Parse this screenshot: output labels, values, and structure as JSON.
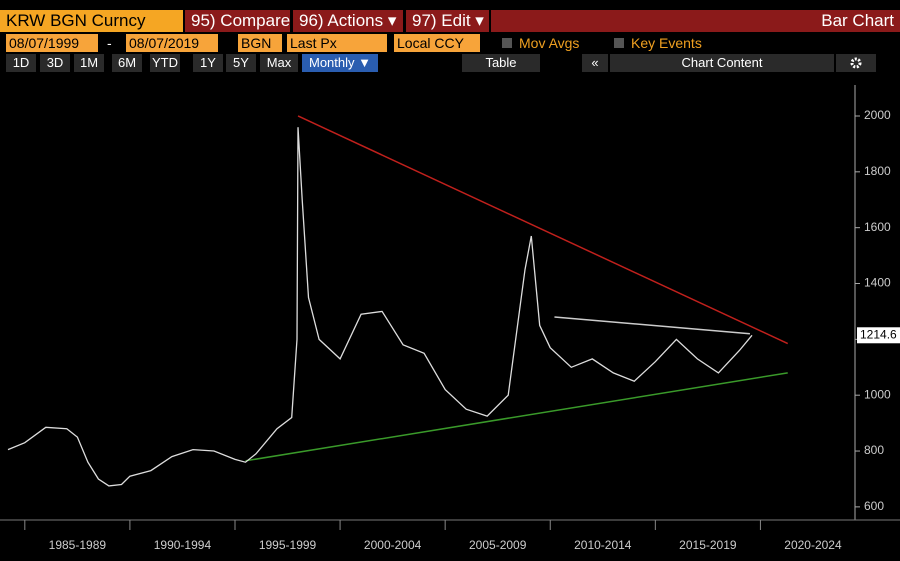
{
  "toolbar": {
    "ticker": "KRW BGN Curncy",
    "compare": "95) Compare",
    "actions": "96) Actions ▾",
    "edit": "97) Edit ▾",
    "chart_kind": "Bar Chart",
    "start_date": "08/07/1999",
    "date_dash": "-",
    "end_date": "08/07/2019",
    "source": "BGN",
    "field": "Last Px",
    "currency": "Local CCY",
    "mov_avgs": "Mov Avgs",
    "key_events": "Key Events",
    "periods": [
      "1D",
      "3D",
      "1M",
      "6M",
      "YTD",
      "1Y",
      "5Y",
      "Max"
    ],
    "frequency": "Monthly ▼",
    "table": "Table",
    "collapse": "«",
    "chart_content": "Chart Content"
  },
  "chart_data": {
    "type": "line",
    "x": [
      1984.2,
      1985,
      1986,
      1987,
      1987.5,
      1988,
      1988.5,
      1989,
      1989.6,
      1990,
      1991,
      1992,
      1993,
      1994,
      1995,
      1995.5,
      1996,
      1997,
      1997.7,
      1997.95,
      1998.0,
      1998.2,
      1998.5,
      1999,
      2000,
      2001,
      2002,
      2003,
      2004,
      2005,
      2006,
      2007,
      2008,
      2008.8,
      2009.1,
      2009.5,
      2010,
      2011,
      2012,
      2013,
      2014,
      2015,
      2016,
      2017,
      2018,
      2019,
      2019.6
    ],
    "series": [
      {
        "name": "KRW BGN Curncy",
        "color": "#dddddd",
        "values": [
          805,
          830,
          885,
          880,
          850,
          760,
          700,
          675,
          680,
          710,
          730,
          780,
          805,
          800,
          770,
          760,
          790,
          880,
          920,
          1200,
          1960,
          1700,
          1350,
          1200,
          1130,
          1290,
          1300,
          1180,
          1150,
          1020,
          950,
          925,
          1000,
          1450,
          1570,
          1250,
          1170,
          1100,
          1130,
          1080,
          1050,
          1120,
          1200,
          1130,
          1080,
          1160,
          1214.6
        ]
      }
    ],
    "last_value_label": "1214.6",
    "trendlines": [
      {
        "color": "#c0201c",
        "x1": 1998,
        "y1": 2000,
        "x2": 2021.3,
        "y2": 1185
      },
      {
        "color": "#3a9a2a",
        "x1": 1995.5,
        "y1": 765,
        "x2": 2021.3,
        "y2": 1080
      },
      {
        "color": "#cccccc",
        "x1": 2010.2,
        "y1": 1280,
        "x2": 2019.5,
        "y2": 1220
      }
    ],
    "xlim": [
      1984.2,
      2024.5
    ],
    "xticks": [
      {
        "value": 1985,
        "label": "1985-1989"
      },
      {
        "value": 1990,
        "label": "1990-1994"
      },
      {
        "value": 1995,
        "label": "1995-1999"
      },
      {
        "value": 2000,
        "label": "2000-2004"
      },
      {
        "value": 2005,
        "label": "2005-2009"
      },
      {
        "value": 2010,
        "label": "2010-2014"
      },
      {
        "value": 2015,
        "label": "2015-2019"
      },
      {
        "value": 2020,
        "label": "2020-2024"
      }
    ],
    "ylim": [
      553,
      2111
    ],
    "yticks": [
      600,
      800,
      1000,
      1200,
      1400,
      1600,
      1800,
      2000
    ]
  }
}
